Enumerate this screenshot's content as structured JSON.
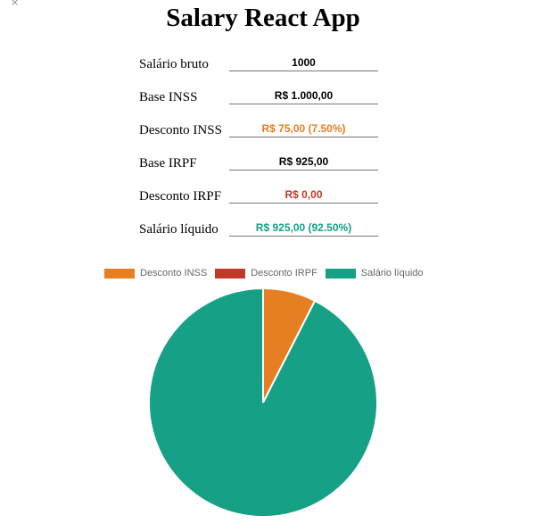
{
  "cursor_glyph": "×",
  "title": "Salary React App",
  "form": {
    "rows": [
      {
        "label": "Salário bruto",
        "value": "1000",
        "color": "#000000"
      },
      {
        "label": "Base INSS",
        "value": "R$ 1.000,00",
        "color": "#000000"
      },
      {
        "label": "Desconto INSS",
        "value": "R$ 75,00 (7.50%)",
        "color": "#e67e22"
      },
      {
        "label": "Base IRPF",
        "value": "R$ 925,00",
        "color": "#000000"
      },
      {
        "label": "Desconto IRPF",
        "value": "R$ 0,00",
        "color": "#c0392b"
      },
      {
        "label": "Salário líquido",
        "value": "R$ 925,00 (92.50%)",
        "color": "#16a085"
      }
    ]
  },
  "chart_data": {
    "type": "pie",
    "title": "",
    "legend_position": "top",
    "labels": [
      "Desconto INSS",
      "Desconto IRPF",
      "Salário líquido"
    ],
    "values": [
      75,
      0,
      925
    ],
    "colors": [
      "#e67e22",
      "#c0392b",
      "#16a085"
    ]
  }
}
